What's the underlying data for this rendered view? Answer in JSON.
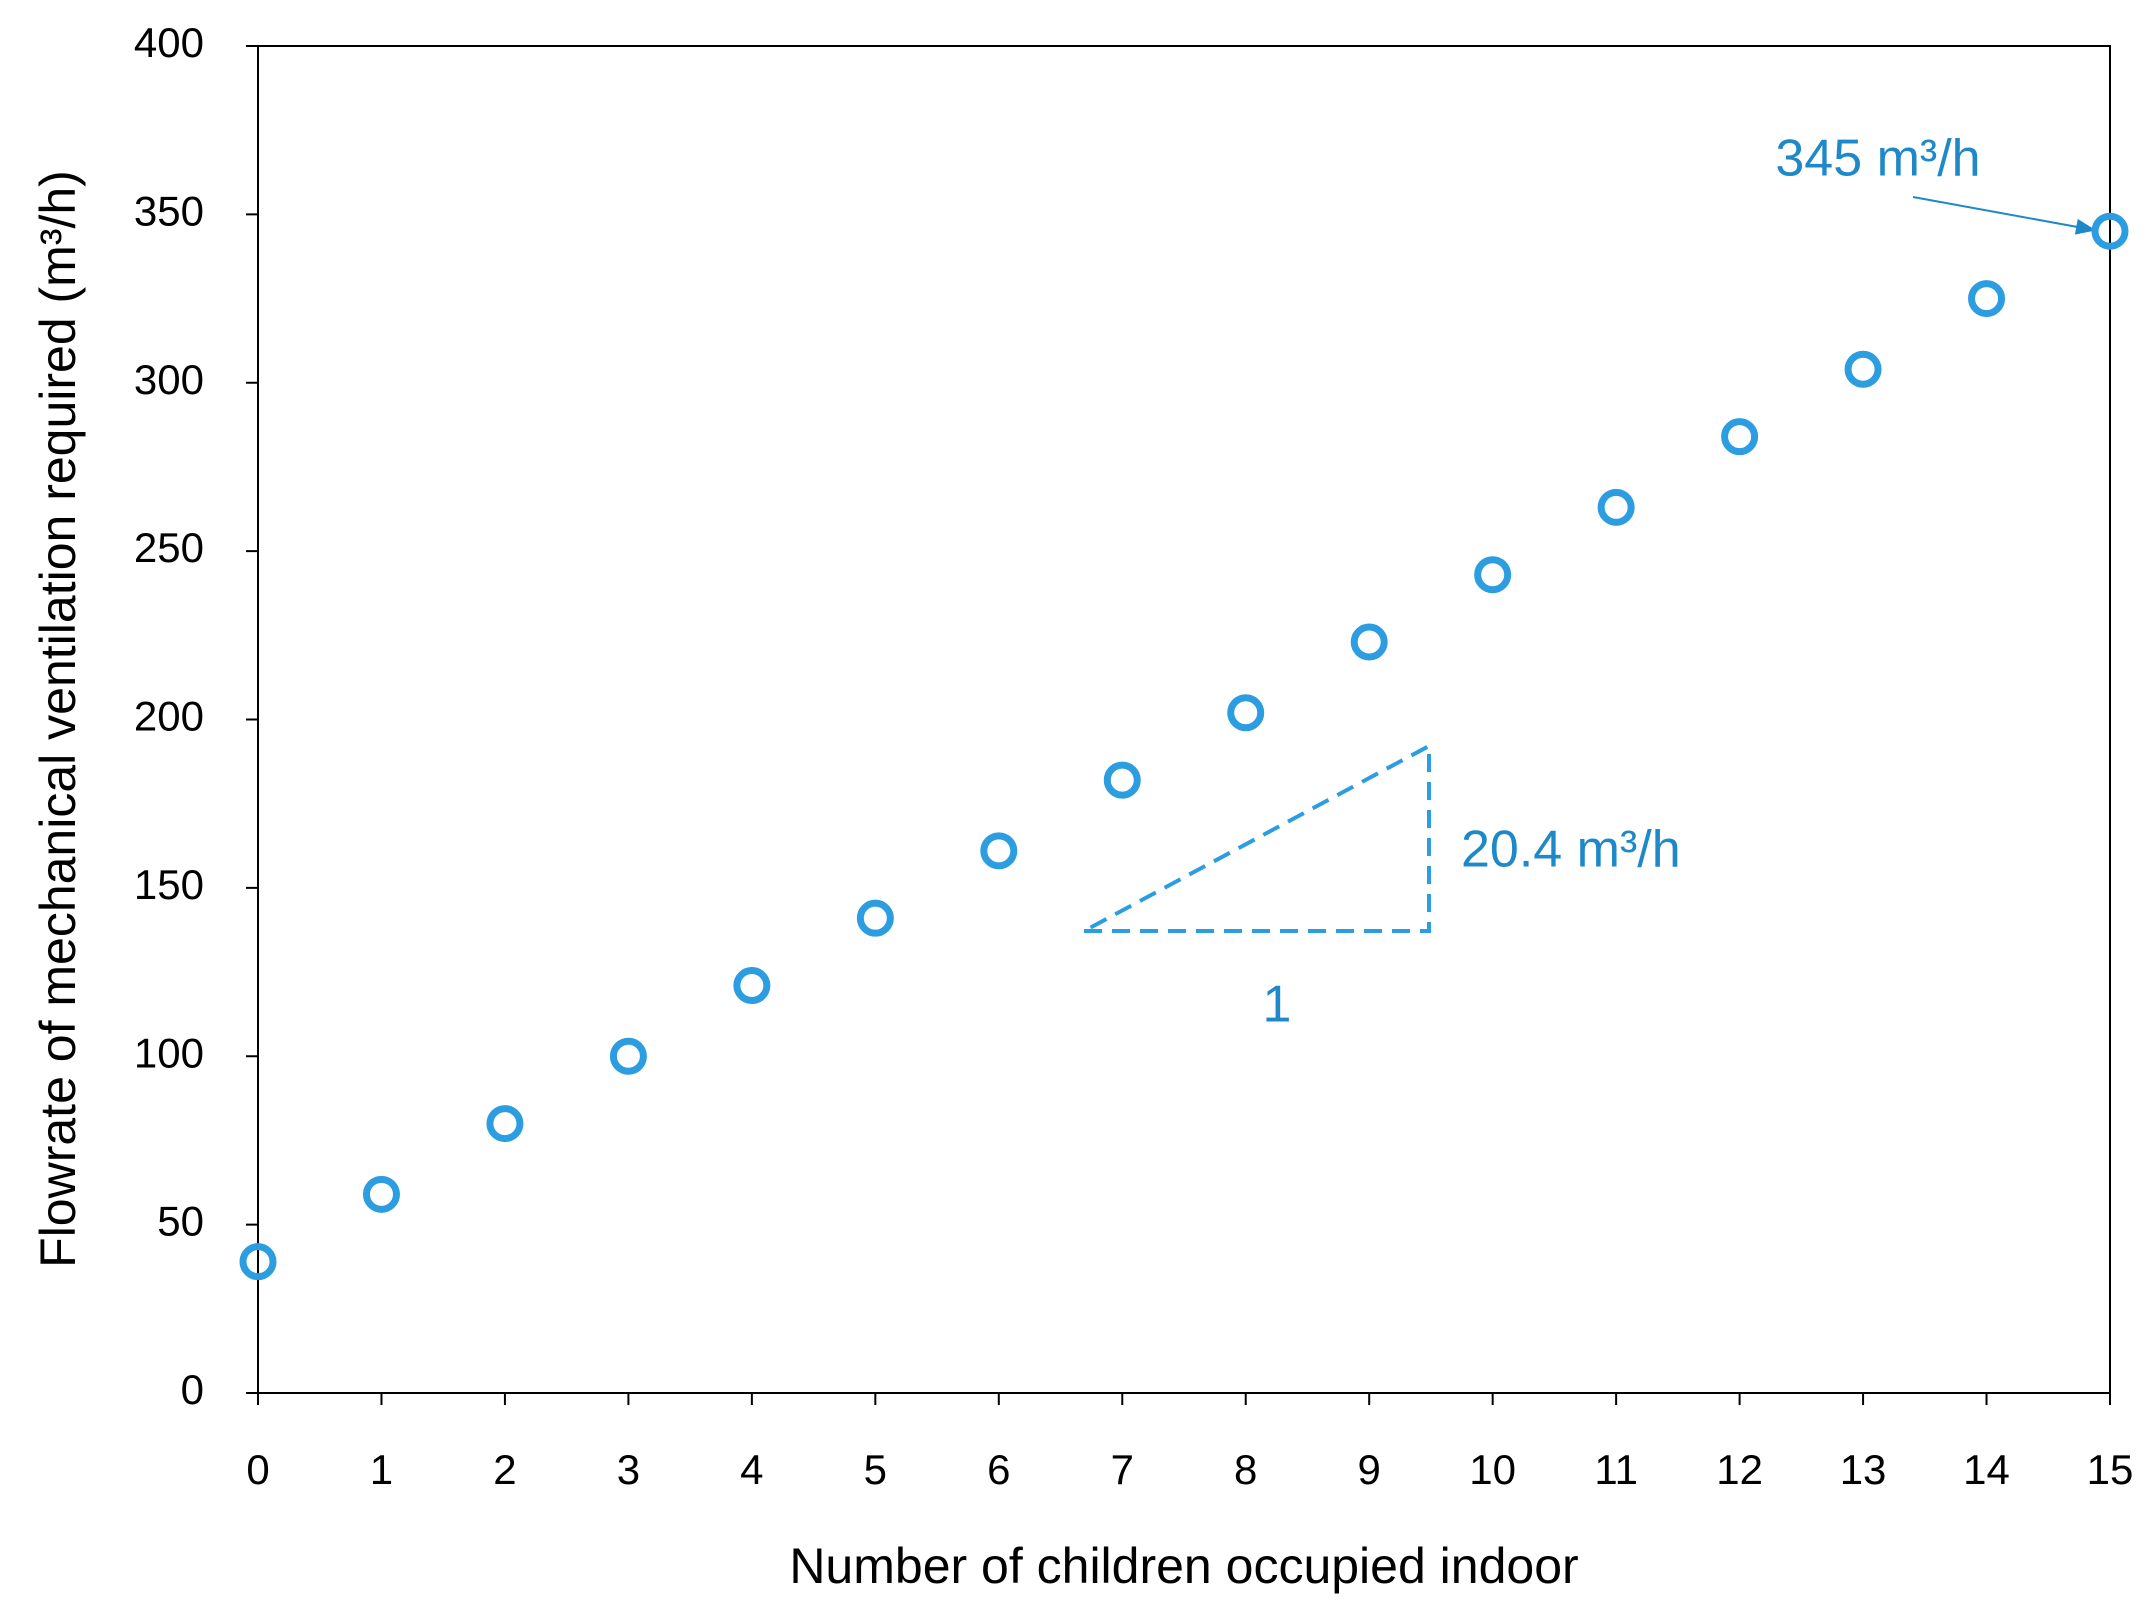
{
  "chart_data": {
    "type": "scatter",
    "xlabel": "Number of children occupied indoor",
    "ylabel": "Flowrate of mechanical ventilation required (m³/h)",
    "x": [
      0,
      1,
      2,
      3,
      4,
      5,
      6,
      7,
      8,
      9,
      10,
      11,
      12,
      13,
      14,
      15
    ],
    "values": [
      39,
      59,
      80,
      100,
      121,
      141,
      161,
      182,
      202,
      223,
      243,
      263,
      284,
      304,
      325,
      345
    ],
    "color": "#2b9de0",
    "xlim": [
      0,
      15
    ],
    "xticks": [
      0,
      1,
      2,
      3,
      4,
      5,
      6,
      7,
      8,
      9,
      10,
      11,
      12,
      13,
      14,
      15
    ],
    "ylim": [
      0,
      400
    ],
    "yticks": [
      0,
      50,
      100,
      150,
      200,
      250,
      300,
      350,
      400
    ],
    "grid": false,
    "annotations": [
      "345 m³/h",
      "20.4 m³/h",
      "1"
    ]
  }
}
